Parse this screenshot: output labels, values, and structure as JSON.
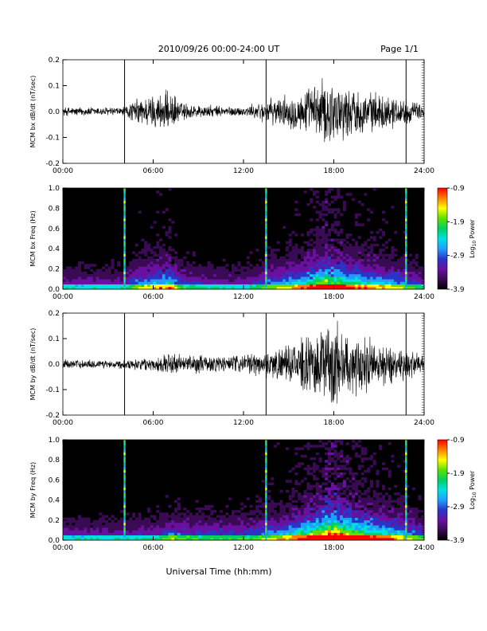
{
  "header": {
    "title": "2010/09/26  00:00-24:00 UT",
    "page": "Page 1/1"
  },
  "footer": {
    "xlabel": "Universal Time (hh:mm)"
  },
  "colorbar": {
    "labels": [
      "-0.9",
      "-1.9",
      "-2.9",
      "-3.9"
    ],
    "title_main": "Log",
    "title_sub": "10",
    "title_end": " Power",
    "colors": [
      "#000000",
      "#3a0a55",
      "#6a10a0",
      "#2a35c8",
      "#1f9fff",
      "#00e0e0",
      "#00d060",
      "#60e000",
      "#ffff00",
      "#ff8000",
      "#ff0000"
    ]
  },
  "chart_data": [
    {
      "type": "line",
      "ylabel": "MCM bx dB/dt (nT/sec)",
      "xlim": [
        0,
        24
      ],
      "ylim": [
        -0.2,
        0.2
      ],
      "x_ticks": [
        "00:00",
        "06:00",
        "12:00",
        "18:00",
        "24:00"
      ],
      "y_ticks": [
        "0.2",
        "0.1",
        "0.0",
        "-0.1",
        "-0.2"
      ],
      "spike_times_h": [
        4.1,
        13.5,
        22.8
      ],
      "amplitude_envelope": [
        [
          0,
          0.02
        ],
        [
          4,
          0.02
        ],
        [
          5,
          0.06
        ],
        [
          7,
          0.09
        ],
        [
          8,
          0.04
        ],
        [
          9,
          0.03
        ],
        [
          12,
          0.02
        ],
        [
          13.5,
          0.05
        ],
        [
          16,
          0.09
        ],
        [
          17.5,
          0.15
        ],
        [
          18.5,
          0.12
        ],
        [
          20,
          0.09
        ],
        [
          22,
          0.07
        ],
        [
          24,
          0.03
        ]
      ]
    },
    {
      "type": "heatmap",
      "ylabel": "MCM bx Freq (Hz)",
      "xlim": [
        0,
        24
      ],
      "ylim": [
        0.0,
        1.0
      ],
      "zlim": [
        -3.9,
        -0.9
      ],
      "x_ticks": [
        "00:00",
        "06:00",
        "12:00",
        "18:00",
        "24:00"
      ],
      "y_ticks": [
        "1.0",
        "0.8",
        "0.6",
        "0.4",
        "0.2",
        "0.0"
      ],
      "spike_times_h": [
        4.1,
        13.5,
        22.8
      ]
    },
    {
      "type": "line",
      "ylabel": "MCM by dB/dt (nT/sec)",
      "xlim": [
        0,
        24
      ],
      "ylim": [
        -0.2,
        0.2
      ],
      "x_ticks": [
        "00:00",
        "06:00",
        "12:00",
        "18:00",
        "24:00"
      ],
      "y_ticks": [
        "0.2",
        "0.1",
        "0.0",
        "-0.1",
        "-0.2"
      ],
      "spike_times_h": [
        4.1,
        13.5,
        22.8
      ],
      "amplitude_envelope": [
        [
          0,
          0.02
        ],
        [
          4,
          0.02
        ],
        [
          6,
          0.03
        ],
        [
          7,
          0.05
        ],
        [
          9,
          0.04
        ],
        [
          12,
          0.04
        ],
        [
          13.5,
          0.06
        ],
        [
          15,
          0.08
        ],
        [
          17,
          0.15
        ],
        [
          18,
          0.2
        ],
        [
          19,
          0.15
        ],
        [
          20,
          0.12
        ],
        [
          22,
          0.09
        ],
        [
          24,
          0.04
        ]
      ]
    },
    {
      "type": "heatmap",
      "ylabel": "MCM by Freq (Hz)",
      "xlim": [
        0,
        24
      ],
      "ylim": [
        0.0,
        1.0
      ],
      "zlim": [
        -3.9,
        -0.9
      ],
      "x_ticks": [
        "00:00",
        "06:00",
        "12:00",
        "18:00",
        "24:00"
      ],
      "y_ticks": [
        "1.0",
        "0.8",
        "0.6",
        "0.4",
        "0.2",
        "0.0"
      ],
      "spike_times_h": [
        4.1,
        13.5,
        22.8
      ]
    }
  ]
}
